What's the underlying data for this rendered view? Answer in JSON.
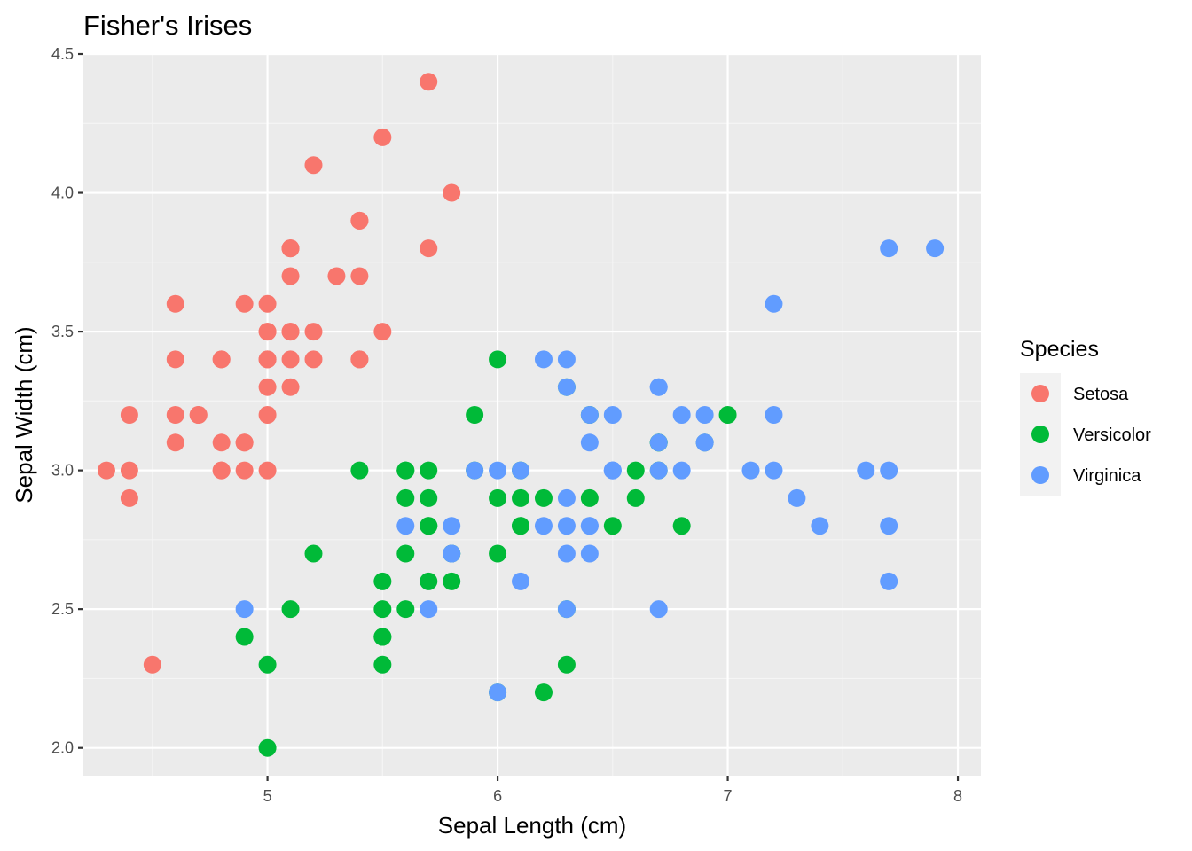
{
  "chart_data": {
    "type": "scatter",
    "title": "Fisher's Irises",
    "xlabel": "Sepal Length (cm)",
    "ylabel": "Sepal Width (cm)",
    "xlim": [
      4.2,
      8.1
    ],
    "ylim": [
      1.9,
      4.5
    ],
    "x_ticks": [
      "5",
      "6",
      "7",
      "8"
    ],
    "y_ticks": [
      "2.0",
      "2.5",
      "3.0",
      "3.5",
      "4.0",
      "4.5"
    ],
    "grid": true,
    "legend": {
      "title": "Species",
      "position": "right"
    },
    "series": [
      {
        "name": "Setosa",
        "color": "#F8766D",
        "points": [
          [
            5.1,
            3.5
          ],
          [
            4.9,
            3.0
          ],
          [
            4.7,
            3.2
          ],
          [
            4.6,
            3.1
          ],
          [
            5.0,
            3.6
          ],
          [
            5.4,
            3.9
          ],
          [
            4.6,
            3.4
          ],
          [
            5.0,
            3.4
          ],
          [
            4.4,
            2.9
          ],
          [
            4.9,
            3.1
          ],
          [
            5.4,
            3.7
          ],
          [
            4.8,
            3.4
          ],
          [
            4.8,
            3.0
          ],
          [
            4.3,
            3.0
          ],
          [
            5.8,
            4.0
          ],
          [
            5.7,
            4.4
          ],
          [
            5.4,
            3.9
          ],
          [
            5.1,
            3.5
          ],
          [
            5.7,
            3.8
          ],
          [
            5.1,
            3.8
          ],
          [
            5.4,
            3.4
          ],
          [
            5.1,
            3.7
          ],
          [
            4.6,
            3.6
          ],
          [
            5.1,
            3.3
          ],
          [
            4.8,
            3.4
          ],
          [
            5.0,
            3.0
          ],
          [
            5.0,
            3.4
          ],
          [
            5.2,
            3.5
          ],
          [
            5.2,
            3.4
          ],
          [
            4.7,
            3.2
          ],
          [
            4.8,
            3.1
          ],
          [
            5.4,
            3.4
          ],
          [
            5.2,
            4.1
          ],
          [
            5.5,
            4.2
          ],
          [
            4.9,
            3.1
          ],
          [
            5.0,
            3.2
          ],
          [
            5.5,
            3.5
          ],
          [
            4.9,
            3.6
          ],
          [
            4.4,
            3.0
          ],
          [
            5.1,
            3.4
          ],
          [
            5.0,
            3.5
          ],
          [
            4.5,
            2.3
          ],
          [
            4.4,
            3.2
          ],
          [
            5.0,
            3.5
          ],
          [
            5.1,
            3.8
          ],
          [
            4.8,
            3.0
          ],
          [
            5.1,
            3.8
          ],
          [
            4.6,
            3.2
          ],
          [
            5.3,
            3.7
          ],
          [
            5.0,
            3.3
          ]
        ]
      },
      {
        "name": "Versicolor",
        "color": "#00BA38",
        "points": [
          [
            7.0,
            3.2
          ],
          [
            6.4,
            3.2
          ],
          [
            6.9,
            3.1
          ],
          [
            5.5,
            2.3
          ],
          [
            6.5,
            2.8
          ],
          [
            5.7,
            2.8
          ],
          [
            6.3,
            3.3
          ],
          [
            4.9,
            2.4
          ],
          [
            6.6,
            2.9
          ],
          [
            5.2,
            2.7
          ],
          [
            5.0,
            2.0
          ],
          [
            5.9,
            3.0
          ],
          [
            6.0,
            2.2
          ],
          [
            6.1,
            2.9
          ],
          [
            5.6,
            2.9
          ],
          [
            6.7,
            3.1
          ],
          [
            5.6,
            3.0
          ],
          [
            5.8,
            2.7
          ],
          [
            6.2,
            2.2
          ],
          [
            5.6,
            2.5
          ],
          [
            5.9,
            3.2
          ],
          [
            6.1,
            2.8
          ],
          [
            6.3,
            2.5
          ],
          [
            6.1,
            2.8
          ],
          [
            6.4,
            2.9
          ],
          [
            6.6,
            3.0
          ],
          [
            6.8,
            2.8
          ],
          [
            6.7,
            3.0
          ],
          [
            6.0,
            2.9
          ],
          [
            5.7,
            2.6
          ],
          [
            5.5,
            2.4
          ],
          [
            5.5,
            2.4
          ],
          [
            5.8,
            2.7
          ],
          [
            6.0,
            2.7
          ],
          [
            5.4,
            3.0
          ],
          [
            6.0,
            3.4
          ],
          [
            6.7,
            3.1
          ],
          [
            6.3,
            2.3
          ],
          [
            5.6,
            3.0
          ],
          [
            5.5,
            2.5
          ],
          [
            5.5,
            2.6
          ],
          [
            6.1,
            3.0
          ],
          [
            5.8,
            2.6
          ],
          [
            5.0,
            2.3
          ],
          [
            5.6,
            2.7
          ],
          [
            5.7,
            3.0
          ],
          [
            5.7,
            2.9
          ],
          [
            6.2,
            2.9
          ],
          [
            5.1,
            2.5
          ],
          [
            5.7,
            2.8
          ]
        ]
      },
      {
        "name": "Virginica",
        "color": "#619CFF",
        "points": [
          [
            6.3,
            3.3
          ],
          [
            5.8,
            2.7
          ],
          [
            7.1,
            3.0
          ],
          [
            6.3,
            2.9
          ],
          [
            6.5,
            3.0
          ],
          [
            7.6,
            3.0
          ],
          [
            4.9,
            2.5
          ],
          [
            7.3,
            2.9
          ],
          [
            6.7,
            2.5
          ],
          [
            7.2,
            3.6
          ],
          [
            6.5,
            3.2
          ],
          [
            6.4,
            2.7
          ],
          [
            6.8,
            3.0
          ],
          [
            5.7,
            2.5
          ],
          [
            5.8,
            2.8
          ],
          [
            6.4,
            3.2
          ],
          [
            6.5,
            3.0
          ],
          [
            7.7,
            3.8
          ],
          [
            7.7,
            2.6
          ],
          [
            6.0,
            2.2
          ],
          [
            6.9,
            3.2
          ],
          [
            5.6,
            2.8
          ],
          [
            7.7,
            2.8
          ],
          [
            6.3,
            2.7
          ],
          [
            6.7,
            3.3
          ],
          [
            7.2,
            3.2
          ],
          [
            6.2,
            2.8
          ],
          [
            6.1,
            3.0
          ],
          [
            6.4,
            2.8
          ],
          [
            7.2,
            3.0
          ],
          [
            7.4,
            2.8
          ],
          [
            7.9,
            3.8
          ],
          [
            6.4,
            2.8
          ],
          [
            6.3,
            2.8
          ],
          [
            6.1,
            2.6
          ],
          [
            7.7,
            3.0
          ],
          [
            6.3,
            3.4
          ],
          [
            6.4,
            3.1
          ],
          [
            6.0,
            3.0
          ],
          [
            6.9,
            3.1
          ],
          [
            6.7,
            3.1
          ],
          [
            6.9,
            3.1
          ],
          [
            5.8,
            2.7
          ],
          [
            6.8,
            3.2
          ],
          [
            6.7,
            3.3
          ],
          [
            6.7,
            3.0
          ],
          [
            6.3,
            2.5
          ],
          [
            6.5,
            3.0
          ],
          [
            6.2,
            3.4
          ],
          [
            5.9,
            3.0
          ]
        ]
      }
    ]
  }
}
